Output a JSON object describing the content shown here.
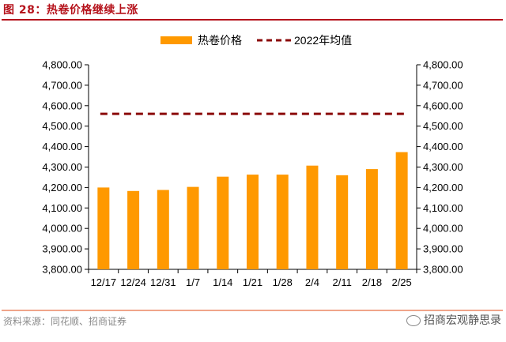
{
  "figure": {
    "title": "图 28：热卷价格继续上涨",
    "source": "资料来源：同花顺、招商证券",
    "brand": "招商宏观静思录",
    "brand_icon": "wechat-icon"
  },
  "chart_data": {
    "type": "bar",
    "categories": [
      "12/17",
      "12/24",
      "12/31",
      "1/7",
      "1/14",
      "1/21",
      "1/28",
      "2/4",
      "2/11",
      "2/18",
      "2/25"
    ],
    "series": [
      {
        "name": "热卷价格",
        "type": "bar",
        "color": "#ff9900",
        "values": [
          4200,
          4183,
          4188,
          4203,
          4253,
          4263,
          4263,
          4307,
          4260,
          4290,
          4373
        ]
      },
      {
        "name": "2022年均值",
        "type": "line",
        "style": "dashed",
        "color": "#8b0a0a",
        "values": [
          4560,
          4560,
          4560,
          4560,
          4560,
          4560,
          4560,
          4560,
          4560,
          4560,
          4560
        ]
      }
    ],
    "ylim": [
      3800,
      4800
    ],
    "yticks": [
      "3,800.00",
      "3,900.00",
      "4,000.00",
      "4,100.00",
      "4,200.00",
      "4,300.00",
      "4,400.00",
      "4,500.00",
      "4,600.00",
      "4,700.00",
      "4,800.00"
    ],
    "y2ticks": [
      "3,800.00",
      "3,900.00",
      "4,000.00",
      "4,100.00",
      "4,200.00",
      "4,300.00",
      "4,400.00",
      "4,500.00",
      "4,600.00",
      "4,700.00",
      "4,800.00"
    ],
    "legend_position": "top",
    "grid": false
  }
}
